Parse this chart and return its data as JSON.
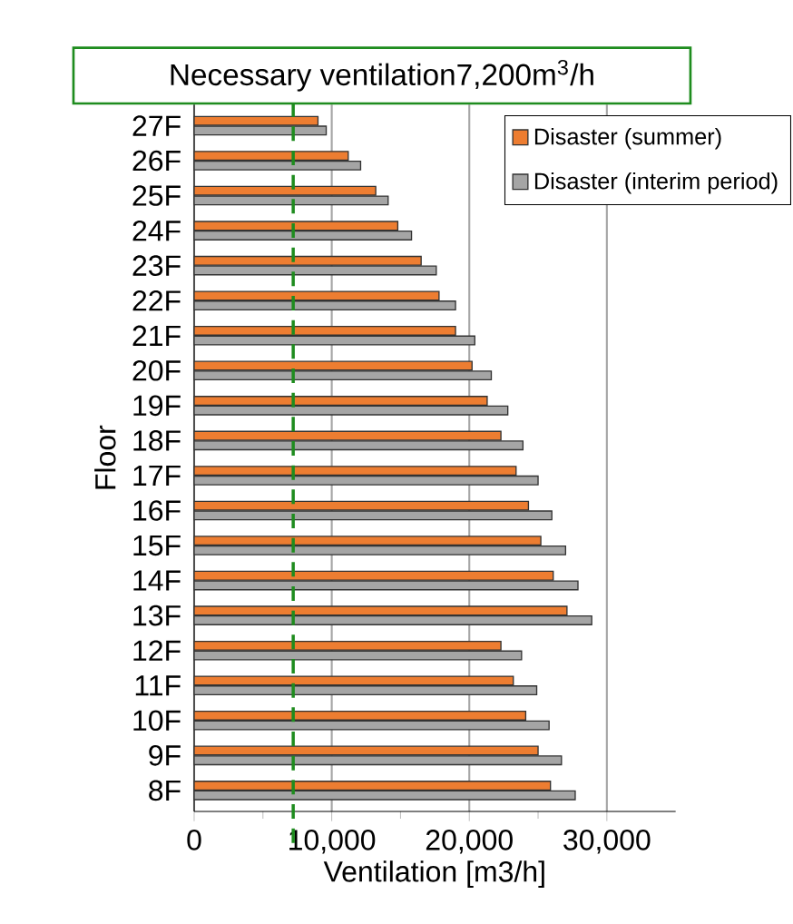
{
  "chart_data": {
    "type": "bar",
    "orientation": "horizontal",
    "categories": [
      "27F",
      "26F",
      "25F",
      "24F",
      "23F",
      "22F",
      "21F",
      "20F",
      "19F",
      "18F",
      "17F",
      "16F",
      "15F",
      "14F",
      "13F",
      "12F",
      "11F",
      "10F",
      "9F",
      "8F"
    ],
    "series": [
      {
        "name": "Disaster (summer)",
        "color": "#ed7d31",
        "values": [
          9000,
          11200,
          13200,
          14800,
          16500,
          17800,
          19000,
          20200,
          21300,
          22300,
          23400,
          24300,
          25200,
          26100,
          27100,
          22300,
          23200,
          24100,
          25000,
          25900
        ]
      },
      {
        "name": "Disaster (interim period)",
        "color": "#a5a5a5",
        "values": [
          9600,
          12100,
          14100,
          15800,
          17600,
          19000,
          20400,
          21600,
          22800,
          23900,
          25000,
          26000,
          27000,
          27900,
          28900,
          23800,
          24900,
          25800,
          26700,
          27700
        ]
      }
    ],
    "xlabel": "Ventilation [m3/h]",
    "ylabel": "Floor",
    "xlim": [
      0,
      35000
    ],
    "xticks": [
      {
        "value": 0,
        "label": "0"
      },
      {
        "value": 5000,
        "label": null
      },
      {
        "value": 10000,
        "label": "10,000"
      },
      {
        "value": 15000,
        "label": null
      },
      {
        "value": 20000,
        "label": "20,000"
      },
      {
        "value": 25000,
        "label": null
      },
      {
        "value": 30000,
        "label": "30,000"
      }
    ],
    "ref_lines": [
      {
        "axis": "x",
        "value": 7200,
        "label": "Necessary ventilation7,200m$^{3}$/h",
        "color": "#1e8c1e",
        "line_style": "dashed"
      }
    ],
    "grid": "x",
    "legend": "top right"
  }
}
